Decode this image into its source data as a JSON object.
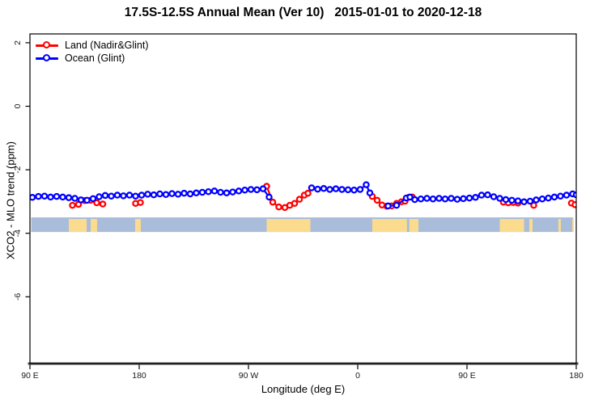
{
  "title": "17.5S-12.5S Annual Mean (Ver 10)   2015-01-01 to 2020-12-18",
  "legend": {
    "items": [
      {
        "label": "Land (Nadir&Glint)",
        "color": "#ff0000"
      },
      {
        "label": "Ocean (Glint)",
        "color": "#0000ff"
      }
    ]
  },
  "chart_data": {
    "type": "line",
    "title": "17.5S-12.5S Annual Mean (Ver 10)   2015-01-01 to 2020-12-18",
    "xlabel": "Longitude (deg E)",
    "ylabel": "XCO2 - MLO trend (ppm)",
    "x_axis": {
      "range": [
        90,
        540
      ],
      "ticks": [
        {
          "pos": 90,
          "label": "90 E"
        },
        {
          "pos": 180,
          "label": "180"
        },
        {
          "pos": 270,
          "label": "90 W"
        },
        {
          "pos": 360,
          "label": "0"
        },
        {
          "pos": 450,
          "label": "90 E"
        },
        {
          "pos": 540,
          "label": "180"
        }
      ]
    },
    "y_axis": {
      "range": [
        -8.2,
        2.3
      ],
      "ticks": [
        2,
        0,
        -2,
        -4,
        -6
      ]
    },
    "legend_position": "top-left",
    "grid": false,
    "series": [
      {
        "name": "Land (Nadir&Glint)",
        "color": "#ff0000",
        "points": [
          [
            125,
            -3.12
          ],
          [
            130,
            -3.09
          ],
          [
            135,
            -2.97
          ],
          [
            140,
            -2.96
          ],
          [
            145,
            -3.04
          ],
          [
            150,
            -3.08
          ],
          [
            177,
            -3.06
          ],
          [
            181,
            -3.03
          ],
          [
            285,
            -2.52
          ],
          [
            290,
            -3.02
          ],
          [
            295,
            -3.17
          ],
          [
            300,
            -3.19
          ],
          [
            304,
            -3.12
          ],
          [
            308,
            -3.06
          ],
          [
            312,
            -2.93
          ],
          [
            316,
            -2.8
          ],
          [
            319,
            -2.74
          ],
          [
            372,
            -2.84
          ],
          [
            376,
            -2.96
          ],
          [
            380,
            -3.11
          ],
          [
            384,
            -3.15
          ],
          [
            388,
            -3.14
          ],
          [
            392,
            -3.06
          ],
          [
            396,
            -3.01
          ],
          [
            399,
            -2.99
          ],
          [
            402,
            -2.87
          ],
          [
            405,
            -2.86
          ],
          [
            480,
            -3.02
          ],
          [
            484,
            -3.04
          ],
          [
            488,
            -3.03
          ],
          [
            492,
            -3.05
          ],
          [
            505,
            -3.12
          ],
          [
            536,
            -3.05
          ],
          [
            539,
            -3.1
          ]
        ]
      },
      {
        "name": "Ocean (Glint)",
        "color": "#0000ff",
        "points": [
          [
            92,
            -2.87
          ],
          [
            97,
            -2.84
          ],
          [
            102,
            -2.83
          ],
          [
            107,
            -2.86
          ],
          [
            112,
            -2.84
          ],
          [
            117,
            -2.86
          ],
          [
            122,
            -2.88
          ],
          [
            127,
            -2.9
          ],
          [
            132,
            -2.95
          ],
          [
            137,
            -2.96
          ],
          [
            142,
            -2.91
          ],
          [
            147,
            -2.85
          ],
          [
            152,
            -2.81
          ],
          [
            157,
            -2.83
          ],
          [
            162,
            -2.8
          ],
          [
            167,
            -2.82
          ],
          [
            172,
            -2.8
          ],
          [
            177,
            -2.83
          ],
          [
            182,
            -2.8
          ],
          [
            187,
            -2.77
          ],
          [
            192,
            -2.79
          ],
          [
            197,
            -2.76
          ],
          [
            202,
            -2.78
          ],
          [
            207,
            -2.75
          ],
          [
            212,
            -2.77
          ],
          [
            217,
            -2.74
          ],
          [
            222,
            -2.76
          ],
          [
            227,
            -2.73
          ],
          [
            232,
            -2.71
          ],
          [
            237,
            -2.69
          ],
          [
            242,
            -2.67
          ],
          [
            247,
            -2.71
          ],
          [
            252,
            -2.73
          ],
          [
            257,
            -2.7
          ],
          [
            262,
            -2.67
          ],
          [
            267,
            -2.64
          ],
          [
            272,
            -2.62
          ],
          [
            277,
            -2.63
          ],
          [
            282,
            -2.6
          ],
          [
            287,
            -2.86
          ],
          [
            322,
            -2.57
          ],
          [
            327,
            -2.61
          ],
          [
            332,
            -2.59
          ],
          [
            337,
            -2.62
          ],
          [
            342,
            -2.6
          ],
          [
            347,
            -2.62
          ],
          [
            352,
            -2.63
          ],
          [
            357,
            -2.64
          ],
          [
            362,
            -2.62
          ],
          [
            367,
            -2.47
          ],
          [
            370,
            -2.73
          ],
          [
            385,
            -3.14
          ],
          [
            392,
            -3.12
          ],
          [
            400,
            -2.89
          ],
          [
            403,
            -2.86
          ],
          [
            407,
            -2.94
          ],
          [
            412,
            -2.92
          ],
          [
            417,
            -2.9
          ],
          [
            422,
            -2.92
          ],
          [
            427,
            -2.9
          ],
          [
            432,
            -2.92
          ],
          [
            437,
            -2.9
          ],
          [
            442,
            -2.93
          ],
          [
            447,
            -2.91
          ],
          [
            452,
            -2.89
          ],
          [
            457,
            -2.87
          ],
          [
            462,
            -2.8
          ],
          [
            467,
            -2.79
          ],
          [
            472,
            -2.85
          ],
          [
            477,
            -2.9
          ],
          [
            482,
            -2.94
          ],
          [
            487,
            -2.96
          ],
          [
            492,
            -2.98
          ],
          [
            497,
            -3.01
          ],
          [
            502,
            -2.99
          ],
          [
            507,
            -2.95
          ],
          [
            512,
            -2.92
          ],
          [
            517,
            -2.89
          ],
          [
            522,
            -2.86
          ],
          [
            527,
            -2.83
          ],
          [
            532,
            -2.8
          ],
          [
            537,
            -2.76
          ],
          [
            540,
            -2.79
          ]
        ]
      }
    ],
    "map_strip": {
      "y_range": [
        -3.5,
        -3.96
      ],
      "x_range": [
        91,
        537.5
      ],
      "ocean_color": "#a9bddb",
      "land_color": "#fbdc8e",
      "land_segments": [
        [
          122,
          136.7
        ],
        [
          140,
          145.3
        ],
        [
          176.7,
          181.3
        ],
        [
          285,
          321
        ],
        [
          372,
          400.5
        ],
        [
          402.5,
          410
        ],
        [
          477,
          497
        ],
        [
          501.3,
          504
        ],
        [
          525.3,
          527.3
        ],
        [
          536.7,
          538
        ]
      ]
    }
  }
}
